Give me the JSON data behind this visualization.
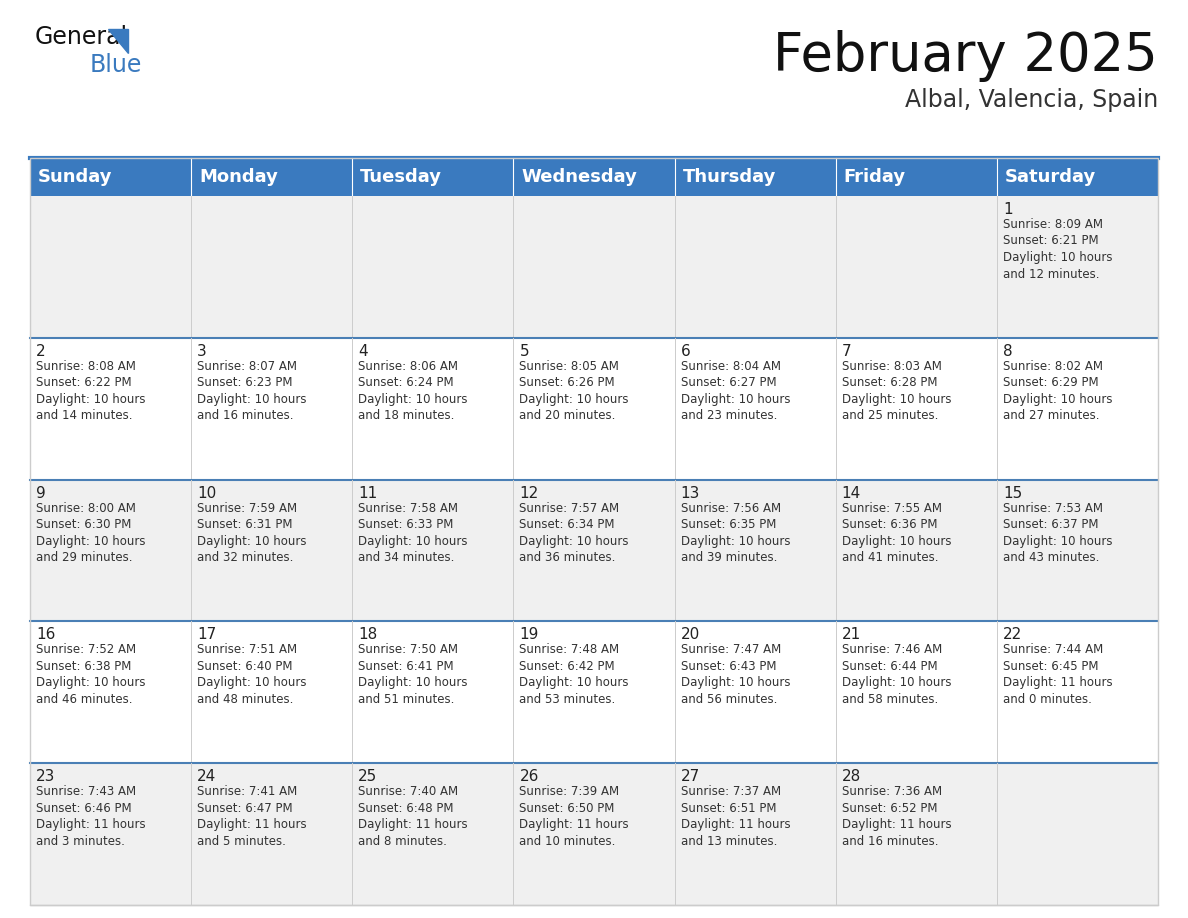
{
  "title": "February 2025",
  "subtitle": "Albal, Valencia, Spain",
  "header_color": "#3a7abf",
  "header_text_color": "#ffffff",
  "cell_bg_white": "#ffffff",
  "cell_bg_gray": "#f0f0f0",
  "separator_color": "#4a7fb5",
  "border_color": "#cccccc",
  "day_names": [
    "Sunday",
    "Monday",
    "Tuesday",
    "Wednesday",
    "Thursday",
    "Friday",
    "Saturday"
  ],
  "title_fontsize": 38,
  "subtitle_fontsize": 17,
  "day_header_fontsize": 13,
  "cell_day_fontsize": 11,
  "cell_info_fontsize": 8.5,
  "weeks": [
    [
      {
        "day": null,
        "info": null
      },
      {
        "day": null,
        "info": null
      },
      {
        "day": null,
        "info": null
      },
      {
        "day": null,
        "info": null
      },
      {
        "day": null,
        "info": null
      },
      {
        "day": null,
        "info": null
      },
      {
        "day": "1",
        "info": "Sunrise: 8:09 AM\nSunset: 6:21 PM\nDaylight: 10 hours\nand 12 minutes."
      }
    ],
    [
      {
        "day": "2",
        "info": "Sunrise: 8:08 AM\nSunset: 6:22 PM\nDaylight: 10 hours\nand 14 minutes."
      },
      {
        "day": "3",
        "info": "Sunrise: 8:07 AM\nSunset: 6:23 PM\nDaylight: 10 hours\nand 16 minutes."
      },
      {
        "day": "4",
        "info": "Sunrise: 8:06 AM\nSunset: 6:24 PM\nDaylight: 10 hours\nand 18 minutes."
      },
      {
        "day": "5",
        "info": "Sunrise: 8:05 AM\nSunset: 6:26 PM\nDaylight: 10 hours\nand 20 minutes."
      },
      {
        "day": "6",
        "info": "Sunrise: 8:04 AM\nSunset: 6:27 PM\nDaylight: 10 hours\nand 23 minutes."
      },
      {
        "day": "7",
        "info": "Sunrise: 8:03 AM\nSunset: 6:28 PM\nDaylight: 10 hours\nand 25 minutes."
      },
      {
        "day": "8",
        "info": "Sunrise: 8:02 AM\nSunset: 6:29 PM\nDaylight: 10 hours\nand 27 minutes."
      }
    ],
    [
      {
        "day": "9",
        "info": "Sunrise: 8:00 AM\nSunset: 6:30 PM\nDaylight: 10 hours\nand 29 minutes."
      },
      {
        "day": "10",
        "info": "Sunrise: 7:59 AM\nSunset: 6:31 PM\nDaylight: 10 hours\nand 32 minutes."
      },
      {
        "day": "11",
        "info": "Sunrise: 7:58 AM\nSunset: 6:33 PM\nDaylight: 10 hours\nand 34 minutes."
      },
      {
        "day": "12",
        "info": "Sunrise: 7:57 AM\nSunset: 6:34 PM\nDaylight: 10 hours\nand 36 minutes."
      },
      {
        "day": "13",
        "info": "Sunrise: 7:56 AM\nSunset: 6:35 PM\nDaylight: 10 hours\nand 39 minutes."
      },
      {
        "day": "14",
        "info": "Sunrise: 7:55 AM\nSunset: 6:36 PM\nDaylight: 10 hours\nand 41 minutes."
      },
      {
        "day": "15",
        "info": "Sunrise: 7:53 AM\nSunset: 6:37 PM\nDaylight: 10 hours\nand 43 minutes."
      }
    ],
    [
      {
        "day": "16",
        "info": "Sunrise: 7:52 AM\nSunset: 6:38 PM\nDaylight: 10 hours\nand 46 minutes."
      },
      {
        "day": "17",
        "info": "Sunrise: 7:51 AM\nSunset: 6:40 PM\nDaylight: 10 hours\nand 48 minutes."
      },
      {
        "day": "18",
        "info": "Sunrise: 7:50 AM\nSunset: 6:41 PM\nDaylight: 10 hours\nand 51 minutes."
      },
      {
        "day": "19",
        "info": "Sunrise: 7:48 AM\nSunset: 6:42 PM\nDaylight: 10 hours\nand 53 minutes."
      },
      {
        "day": "20",
        "info": "Sunrise: 7:47 AM\nSunset: 6:43 PM\nDaylight: 10 hours\nand 56 minutes."
      },
      {
        "day": "21",
        "info": "Sunrise: 7:46 AM\nSunset: 6:44 PM\nDaylight: 10 hours\nand 58 minutes."
      },
      {
        "day": "22",
        "info": "Sunrise: 7:44 AM\nSunset: 6:45 PM\nDaylight: 11 hours\nand 0 minutes."
      }
    ],
    [
      {
        "day": "23",
        "info": "Sunrise: 7:43 AM\nSunset: 6:46 PM\nDaylight: 11 hours\nand 3 minutes."
      },
      {
        "day": "24",
        "info": "Sunrise: 7:41 AM\nSunset: 6:47 PM\nDaylight: 11 hours\nand 5 minutes."
      },
      {
        "day": "25",
        "info": "Sunrise: 7:40 AM\nSunset: 6:48 PM\nDaylight: 11 hours\nand 8 minutes."
      },
      {
        "day": "26",
        "info": "Sunrise: 7:39 AM\nSunset: 6:50 PM\nDaylight: 11 hours\nand 10 minutes."
      },
      {
        "day": "27",
        "info": "Sunrise: 7:37 AM\nSunset: 6:51 PM\nDaylight: 11 hours\nand 13 minutes."
      },
      {
        "day": "28",
        "info": "Sunrise: 7:36 AM\nSunset: 6:52 PM\nDaylight: 11 hours\nand 16 minutes."
      },
      {
        "day": null,
        "info": null
      }
    ]
  ]
}
